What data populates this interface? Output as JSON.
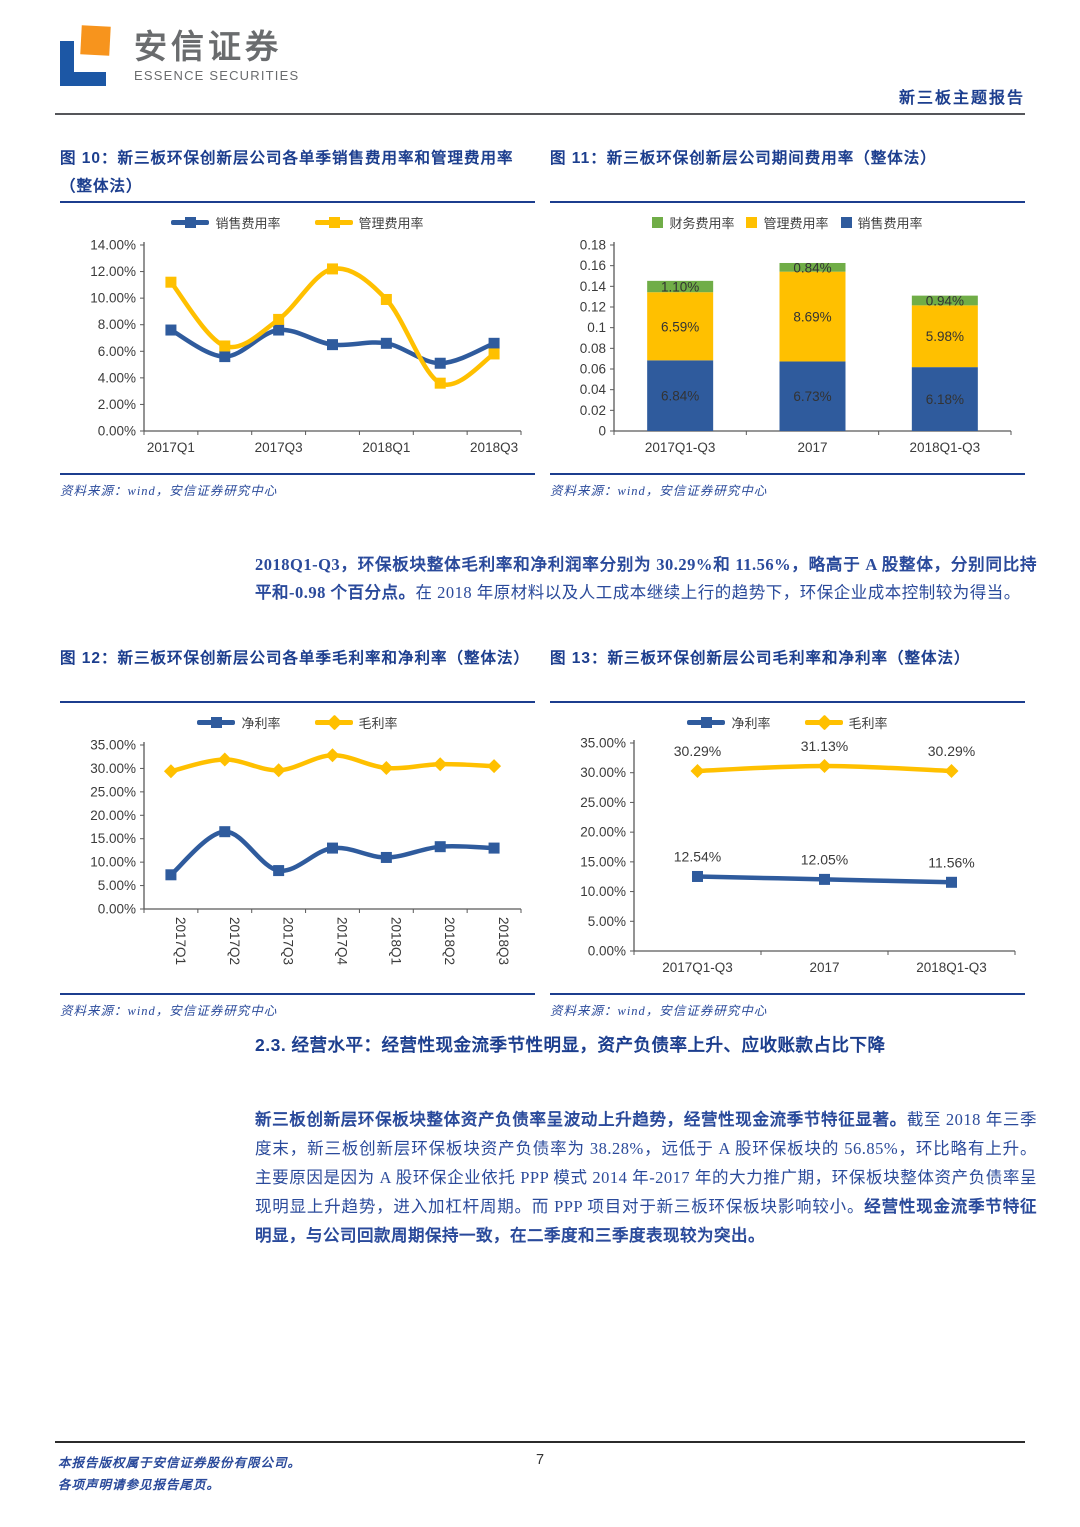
{
  "header": {
    "brand_cn": "安信证券",
    "brand_en": "ESSENCE SECURITIES",
    "report_type": "新三板主题报告"
  },
  "source_note": "资料来源：wind，安信证券研究中心",
  "chart_data": [
    {
      "type": "line",
      "title": "图 10：新三板环保创新层公司各单季销售费用率和管理费用率（整体法）",
      "categories": [
        "2017Q1",
        "2017Q2",
        "2017Q3",
        "2017Q4",
        "2018Q1",
        "2018Q2",
        "2018Q3"
      ],
      "x_label_every": 2,
      "ylim": [
        0,
        14
      ],
      "ytick_step": 2,
      "yformat": "pct",
      "grid": false,
      "legend_position": "top",
      "series": [
        {
          "name": "销售费用率",
          "color": "#2F5B9D",
          "marker": "square",
          "values": [
            7.6,
            5.6,
            7.6,
            6.5,
            6.6,
            5.1,
            6.6
          ]
        },
        {
          "name": "管理费用率",
          "color": "#FFC000",
          "marker": "square",
          "values": [
            11.2,
            6.4,
            8.4,
            12.2,
            9.9,
            3.6,
            5.8
          ]
        }
      ],
      "legend": [
        {
          "name": "销售费用率",
          "color": "#2F5B9D",
          "marker": "square"
        },
        {
          "name": "管理费用率",
          "color": "#FFC000",
          "marker": "square"
        }
      ]
    },
    {
      "type": "stacked-bar",
      "title": "图 11：新三板环保创新层公司期间费用率（整体法）",
      "categories": [
        "2017Q1-Q3",
        "2017",
        "2018Q1-Q3"
      ],
      "ylim": [
        0,
        0.18
      ],
      "ytick_step": 0.02,
      "yformat": "dec",
      "value_scale": 0.01,
      "grid": false,
      "legend_position": "top",
      "series": [
        {
          "name": "销售费用率",
          "color": "#2F5B9D",
          "values": [
            6.84,
            6.73,
            6.18
          ],
          "labels": [
            "6.84%",
            "6.73%",
            "6.18%"
          ]
        },
        {
          "name": "管理费用率",
          "color": "#FFC000",
          "values": [
            6.59,
            8.69,
            5.98
          ],
          "labels": [
            "6.59%",
            "8.69%",
            "5.98%"
          ]
        },
        {
          "name": "财务费用率",
          "color": "#70AD47",
          "values": [
            1.1,
            0.84,
            0.94
          ],
          "labels": [
            "1.10%",
            "0.84%",
            "0.94%"
          ]
        }
      ],
      "legend": [
        {
          "name": "财务费用率",
          "color": "#70AD47",
          "marker": "swatch"
        },
        {
          "name": "管理费用率",
          "color": "#FFC000",
          "marker": "swatch"
        },
        {
          "name": "销售费用率",
          "color": "#2F5B9D",
          "marker": "swatch"
        }
      ]
    },
    {
      "type": "line",
      "title": "图 12：新三板环保创新层公司各单季毛利率和净利率（整体法）",
      "categories": [
        "2017Q1",
        "2017Q2",
        "2017Q3",
        "2017Q4",
        "2018Q1",
        "2018Q2",
        "2018Q3"
      ],
      "x_label_rotation": 90,
      "ylim": [
        0,
        35
      ],
      "ytick_step": 5,
      "yformat": "pct",
      "grid": false,
      "legend_position": "top",
      "series": [
        {
          "name": "净利率",
          "color": "#2F5B9D",
          "marker": "square",
          "values": [
            7.3,
            16.5,
            8.2,
            13.0,
            11.0,
            13.3,
            13.0
          ]
        },
        {
          "name": "毛利率",
          "color": "#FFC000",
          "marker": "diamond",
          "values": [
            29.4,
            31.9,
            29.6,
            32.8,
            30.1,
            30.9,
            30.5
          ]
        }
      ],
      "legend": [
        {
          "name": "净利率",
          "color": "#2F5B9D",
          "marker": "square"
        },
        {
          "name": "毛利率",
          "color": "#FFC000",
          "marker": "diamond"
        }
      ]
    },
    {
      "type": "line",
      "title": "图 13：新三板环保创新层公司毛利率和净利率（整体法）",
      "categories": [
        "2017Q1-Q3",
        "2017",
        "2018Q1-Q3"
      ],
      "ylim": [
        0,
        35
      ],
      "ytick_step": 5,
      "yformat": "pct",
      "grid": false,
      "legend_position": "top",
      "series": [
        {
          "name": "净利率",
          "color": "#2F5B9D",
          "marker": "square",
          "values": [
            12.54,
            12.05,
            11.56
          ],
          "labels": [
            "12.54%",
            "12.05%",
            "11.56%"
          ]
        },
        {
          "name": "毛利率",
          "color": "#FFC000",
          "marker": "diamond",
          "values": [
            30.29,
            31.13,
            30.29
          ],
          "labels": [
            "30.29%",
            "31.13%",
            "30.29%"
          ]
        }
      ],
      "legend": [
        {
          "name": "净利率",
          "color": "#2F5B9D",
          "marker": "square"
        },
        {
          "name": "毛利率",
          "color": "#FFC000",
          "marker": "diamond"
        }
      ]
    }
  ],
  "commentary": {
    "p1_runs": [
      {
        "t": "2018Q1-Q3，环保板块整体毛利率和净利润率分别为 30.29%和 11.56%，略高于 A 股整体，分别同比持平和-0.98 个百分点。",
        "b": true
      },
      {
        "t": "在 2018 年原材料以及人工成本继续上行的趋势下，环保企业成本控制较为得当。",
        "b": false
      }
    ],
    "p2_runs": [
      {
        "t": "新三板创新层环保板块整体资产负债率呈波动上升趋势，经营性现金流季节特征显著。",
        "b": true
      },
      {
        "t": "截至 2018 年三季度末，新三板创新层环保板块资产负债率为 38.28%，远低于 A 股环保板块的 56.85%，环比略有上升。主要原因是因为 A 股环保企业依托 PPP 模式 2014 年-2017 年的大力推广期，环保板块整体资产负债率呈现明显上升趋势，进入加杠杆周期。而 PPP 项目对于新三板环保板块影响较小。",
        "b": false
      },
      {
        "t": "经营性现金流季节特征明显，与公司回款周期保持一致，在二季度和三季度表现较为突出。",
        "b": true
      }
    ]
  },
  "section_heading": "2.3. 经营水平：经营性现金流季节性明显，资产负债率上升、应收账款占比下降",
  "footer": {
    "copyright_line1": "本报告版权属于安信证券股份有限公司。",
    "copyright_line2": "各项声明请参见报告尾页。",
    "page_number": "7"
  },
  "colors": {
    "title_blue": "#1C3E8E",
    "body_blue": "#2A4A9B",
    "chart_blue": "#2F5B9D",
    "chart_yellow": "#FFC000",
    "chart_green": "#70AD47"
  }
}
